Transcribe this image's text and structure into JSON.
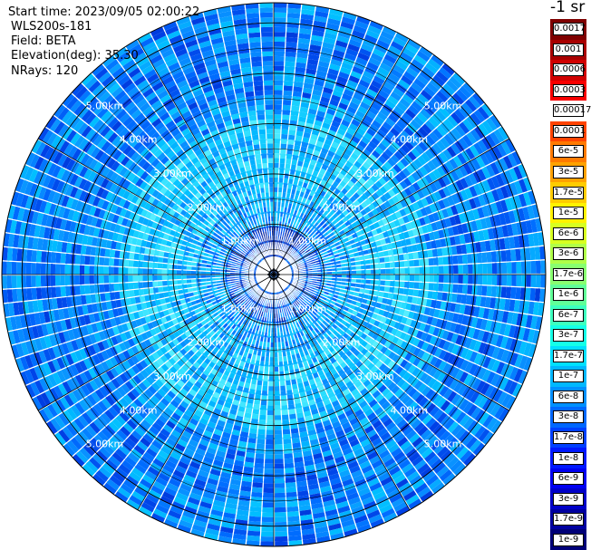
{
  "header": {
    "start_time": "Start time: 2023/09/05 02:00:22",
    "instrument": "WLS200s-181",
    "field": "Field: BETA",
    "elevation": "Elevation(deg): 35.30",
    "nrays": "NRays: 120"
  },
  "colorbar": {
    "title": "-1 sr",
    "labels": [
      "0.0017",
      "0.001",
      "0.0006",
      "0.0003",
      "0.00017",
      "0.0001",
      "6e-5",
      "3e-5",
      "1.7e-5",
      "1e-5",
      "6e-6",
      "3e-6",
      "1.7e-6",
      "1e-6",
      "6e-7",
      "3e-7",
      "1.7e-7",
      "1e-7",
      "6e-8",
      "3e-8",
      "1.7e-8",
      "1e-8",
      "6e-9",
      "3e-9",
      "1.7e-9",
      "1e-9"
    ],
    "colors": [
      "#7f0000",
      "#a80000",
      "#d00000",
      "#f80000",
      "#ffffff",
      "#ff4400",
      "#ff7a00",
      "#ffa200",
      "#ffcc00",
      "#fff200",
      "#d8ff20",
      "#b0ff48",
      "#88ff70",
      "#60ff98",
      "#3cffbf",
      "#14ffe8",
      "#00e0ff",
      "#00b8ff",
      "#0090ff",
      "#0068ff",
      "#0040ff",
      "#0018ff",
      "#0000f0",
      "#0000c8",
      "#0000a0",
      "#000078"
    ]
  },
  "chart_data": {
    "type": "heatmap",
    "projection": "polar PPI scan",
    "field": "BETA",
    "n_rays": 120,
    "range_rings": [
      {
        "label": "1.00km",
        "value": 1.0
      },
      {
        "label": "2.00km",
        "value": 2.0
      },
      {
        "label": "3.00km",
        "value": 3.0
      },
      {
        "label": "4.00km",
        "value": 4.0
      },
      {
        "label": "5.00km",
        "value": 5.0
      }
    ],
    "ring_labels_display": [
      "1.00km",
      "2.00km",
      "3.00km",
      "4.00km",
      "5.00km"
    ],
    "max_range_km": 5.4,
    "spoke_angles_deg": [
      0,
      30,
      60,
      90,
      120,
      150,
      180,
      210,
      240,
      270,
      300,
      330
    ],
    "dominant_values_by_range": [
      {
        "range_km": 0.5,
        "value": "1e-8"
      },
      {
        "range_km": 1.5,
        "value": "6e-8"
      },
      {
        "range_km": 2.5,
        "value": "1.7e-7"
      },
      {
        "range_km": 3.5,
        "value": "3e-8"
      },
      {
        "range_km": 4.5,
        "value": "3e-8"
      }
    ]
  }
}
